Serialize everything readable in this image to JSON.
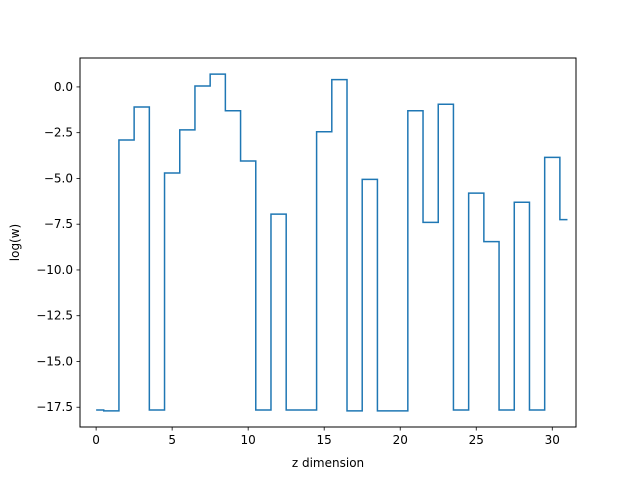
{
  "chart_data": {
    "type": "line",
    "style": "step-mid",
    "xlabel": "z dimension",
    "ylabel": "log(w)",
    "xlim": [
      -1.06,
      31.56
    ],
    "ylim": [
      -18.58,
      1.58
    ],
    "xticks": [
      0,
      5,
      10,
      15,
      20,
      25,
      30
    ],
    "xtick_labels": [
      "0",
      "5",
      "10",
      "15",
      "20",
      "25",
      "30"
    ],
    "yticks": [
      0.0,
      -2.5,
      -5.0,
      -7.5,
      -10.0,
      -12.5,
      -15.0,
      -17.5
    ],
    "ytick_labels": [
      "0.0",
      "−2.5",
      "−5.0",
      "−7.5",
      "−10.0",
      "−12.5",
      "−15.0",
      "−17.5"
    ],
    "grid": false,
    "series": [
      {
        "color": "#1f77b4",
        "x": [
          0,
          1,
          2,
          3,
          4,
          5,
          6,
          7,
          8,
          9,
          10,
          11,
          12,
          13,
          14,
          15,
          16,
          17,
          18,
          19,
          20,
          21,
          22,
          23,
          24,
          25,
          26,
          27,
          28,
          29,
          30,
          31
        ],
        "values": [
          -17.65,
          -17.7,
          -2.9,
          -1.1,
          -17.65,
          -4.7,
          -2.35,
          0.05,
          0.7,
          -1.3,
          -4.05,
          -17.65,
          -6.95,
          -17.65,
          -17.65,
          -2.45,
          0.4,
          -17.7,
          -5.05,
          -17.7,
          -17.7,
          -1.3,
          -7.4,
          -0.95,
          -17.65,
          -5.8,
          -8.45,
          -17.65,
          -6.3,
          -17.65,
          -3.85,
          -7.25
        ]
      }
    ]
  }
}
